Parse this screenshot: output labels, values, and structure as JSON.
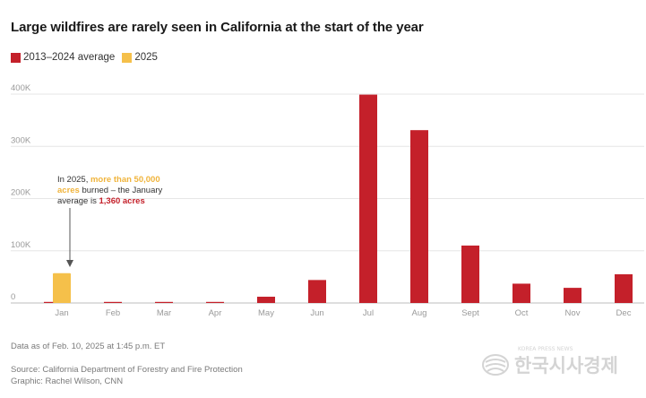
{
  "chart_data": {
    "type": "bar",
    "title": "Large wildfires are rarely seen in California at the start of the year",
    "categories": [
      "Jan",
      "Feb",
      "Mar",
      "Apr",
      "May",
      "Jun",
      "Jul",
      "Aug",
      "Sept",
      "Oct",
      "Nov",
      "Dec"
    ],
    "series": [
      {
        "name": "2013–2024 average",
        "color": "#c4202a",
        "values": [
          1360,
          1500,
          300,
          1800,
          12000,
          44000,
          399000,
          331000,
          110000,
          37000,
          29000,
          55000
        ]
      },
      {
        "name": "2025",
        "color": "#f5c04a",
        "values": [
          57000,
          null,
          null,
          null,
          null,
          null,
          null,
          null,
          null,
          null,
          null,
          null
        ]
      }
    ],
    "ylim": [
      0,
      400000
    ],
    "yticks": [
      0,
      100000,
      200000,
      300000,
      400000
    ],
    "ytick_labels": [
      "0",
      "100K",
      "200K",
      "300K",
      "400K"
    ],
    "xlabel": "",
    "ylabel": "",
    "grid": true,
    "legend_position": "top-left"
  },
  "annotation": {
    "prefix": "In 2025, ",
    "highlight1": "more than 50,000 acres",
    "middle": " burned – the January average is ",
    "highlight2": "1,360 acres"
  },
  "footer": {
    "data_note": "Data as of Feb. 10, 2025 at 1:45 p.m. ET",
    "source": "Source: California Department of Forestry and Fire Protection",
    "credit": "Graphic: Rachel Wilson, CNN"
  },
  "watermark": {
    "text": "한국시사경제",
    "small": "KOREA PRESS NEWS"
  }
}
